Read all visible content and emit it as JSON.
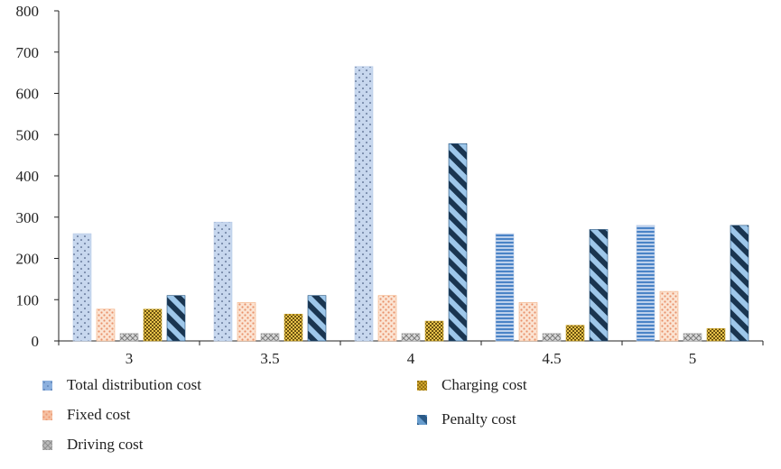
{
  "chart_data": {
    "type": "bar",
    "categories": [
      "3",
      "3.5",
      "4",
      "4.5",
      "5"
    ],
    "ylim": [
      0,
      800
    ],
    "yticks": [
      0,
      100,
      200,
      300,
      400,
      500,
      600,
      700,
      800
    ],
    "grid": false,
    "legend_position": "bottom",
    "series": [
      {
        "name": "Total distribution cost",
        "values": [
          260,
          288,
          665,
          260,
          280
        ],
        "color": "#b8cbe8",
        "pattern": "dots"
      },
      {
        "name": "Fixed cost",
        "values": [
          77,
          93,
          110,
          93,
          120
        ],
        "color": "#f4b183",
        "pattern": "dots-light"
      },
      {
        "name": "Driving cost",
        "values": [
          18,
          18,
          18,
          18,
          18
        ],
        "color": "#a5a5a5",
        "pattern": "crosshatch"
      },
      {
        "name": "Charging cost",
        "values": [
          77,
          65,
          48,
          38,
          30
        ],
        "color": "#c9a227",
        "pattern": "checker"
      },
      {
        "name": "Penalty cost",
        "values": [
          110,
          110,
          478,
          270,
          280
        ],
        "color": "#1f4e79",
        "pattern": "stripes"
      }
    ],
    "alt_pattern_categories": [
      "4.5",
      "5"
    ],
    "alt_pattern": "hlines"
  }
}
